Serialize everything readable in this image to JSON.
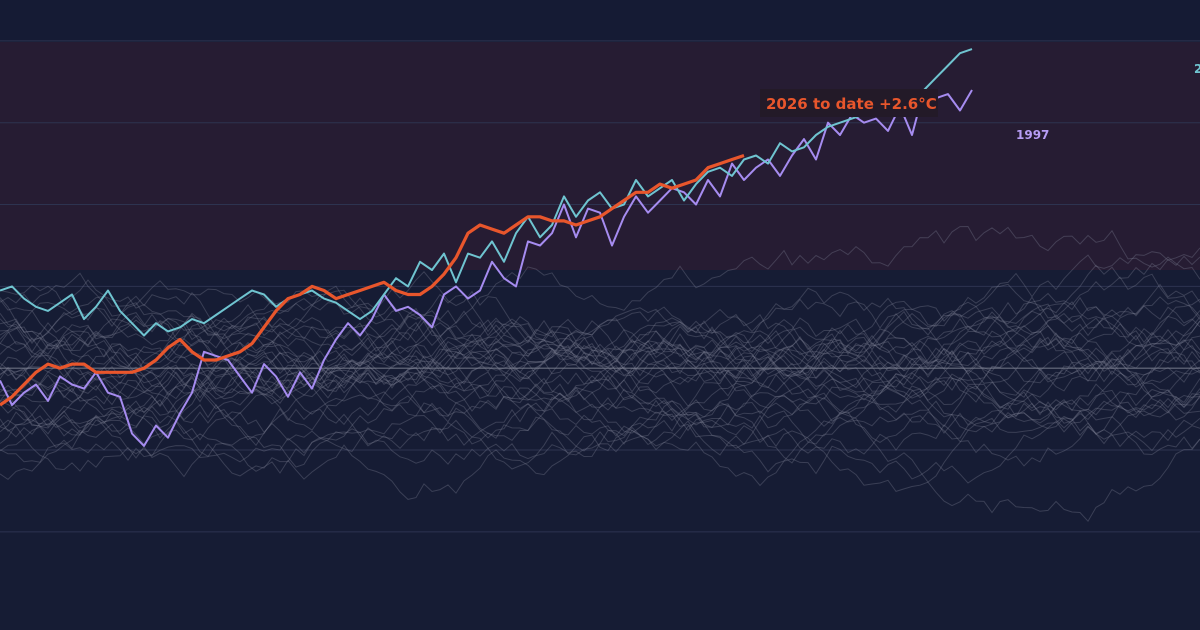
{
  "chart_data": {
    "type": "line",
    "ylim": [
      -3.2,
      4.5
    ],
    "grid": true,
    "highlight": {
      "label": "2026 to date  +2.6°C",
      "end_value": 2.6,
      "color": "#e8562c"
    },
    "series": [
      {
        "name": "1997",
        "color": "#a68cf0",
        "values": [
          -0.15,
          -0.45,
          -0.3,
          -0.2,
          -0.4,
          -0.1,
          -0.2,
          -0.25,
          -0.05,
          -0.3,
          -0.35,
          -0.8,
          -0.95,
          -0.7,
          -0.85,
          -0.55,
          -0.3,
          0.2,
          0.15,
          0.1,
          -0.1,
          -0.3,
          0.05,
          -0.1,
          -0.35,
          -0.05,
          -0.25,
          0.1,
          0.35,
          0.55,
          0.4,
          0.6,
          0.9,
          0.7,
          0.75,
          0.65,
          0.5,
          0.9,
          1.0,
          0.85,
          0.95,
          1.3,
          1.1,
          1.0,
          1.55,
          1.5,
          1.65,
          2.0,
          1.6,
          1.95,
          1.9,
          1.5,
          1.85,
          2.1,
          1.9,
          2.05,
          2.2,
          2.15,
          2.0,
          2.3,
          2.1,
          2.5,
          2.3,
          2.45,
          2.55,
          2.35,
          2.6,
          2.8,
          2.55,
          3.0,
          2.85,
          3.1,
          3.0,
          3.05,
          2.9,
          3.2,
          2.85,
          3.4,
          3.3,
          3.35,
          3.15,
          3.4
        ]
      },
      {
        "name": "2",
        "color": "#6fc4d0",
        "values": [
          0.95,
          1.0,
          0.85,
          0.75,
          0.7,
          0.8,
          0.9,
          0.6,
          0.75,
          0.95,
          0.7,
          0.55,
          0.4,
          0.55,
          0.45,
          0.5,
          0.6,
          0.55,
          0.65,
          0.75,
          0.85,
          0.95,
          0.9,
          0.75,
          0.85,
          0.9,
          0.95,
          0.85,
          0.8,
          0.7,
          0.6,
          0.7,
          0.9,
          1.1,
          1.0,
          1.3,
          1.2,
          1.4,
          1.05,
          1.4,
          1.35,
          1.55,
          1.3,
          1.65,
          1.85,
          1.6,
          1.75,
          2.1,
          1.85,
          2.05,
          2.15,
          1.95,
          2.0,
          2.3,
          2.1,
          2.2,
          2.3,
          2.05,
          2.25,
          2.4,
          2.45,
          2.35,
          2.55,
          2.6,
          2.5,
          2.75,
          2.65,
          2.7,
          2.85,
          2.95,
          3.0,
          3.05,
          3.1,
          3.2,
          3.15,
          3.3,
          3.35,
          3.4,
          3.55,
          3.7,
          3.85,
          3.9
        ]
      },
      {
        "name": "2026",
        "color": "#e8562c",
        "values": [
          -0.45,
          -0.35,
          -0.2,
          -0.05,
          0.05,
          0.0,
          0.05,
          0.05,
          -0.05,
          -0.05,
          -0.05,
          -0.05,
          -0.0,
          0.1,
          0.25,
          0.35,
          0.2,
          0.1,
          0.1,
          0.15,
          0.2,
          0.3,
          0.5,
          0.7,
          0.85,
          0.9,
          1.0,
          0.95,
          0.85,
          0.9,
          0.95,
          1.0,
          1.05,
          0.95,
          0.9,
          0.9,
          1.0,
          1.15,
          1.35,
          1.65,
          1.75,
          1.7,
          1.65,
          1.75,
          1.85,
          1.85,
          1.8,
          1.8,
          1.75,
          1.8,
          1.85,
          1.95,
          2.05,
          2.15,
          2.15,
          2.25,
          2.2,
          2.25,
          2.3,
          2.45,
          2.5,
          2.55,
          2.6
        ]
      }
    ]
  }
}
